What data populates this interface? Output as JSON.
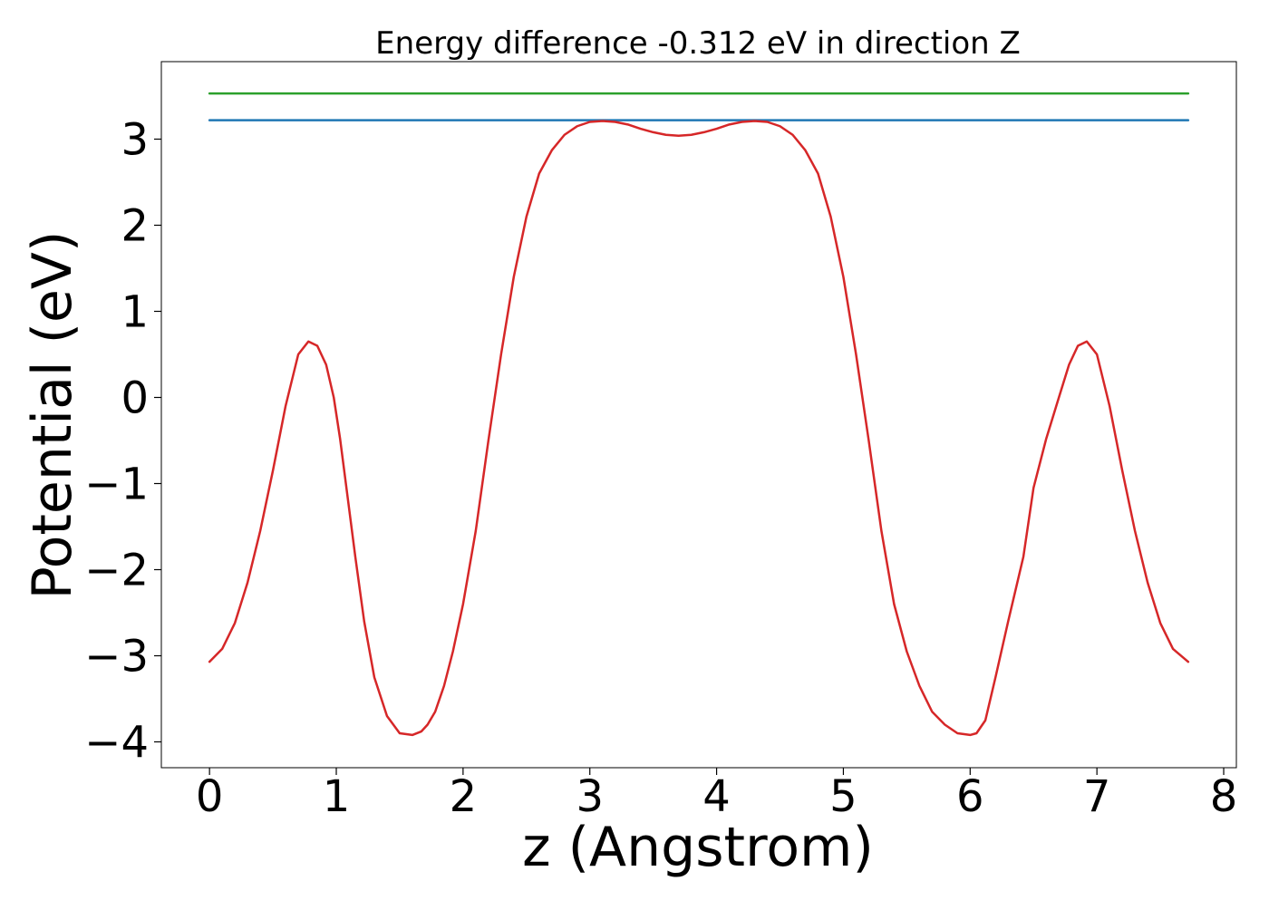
{
  "chart_data": {
    "type": "line",
    "title": "Energy difference -0.312 eV in direction Z",
    "xlabel": "z (Angstrom)",
    "ylabel": "Potential (eV)",
    "xlim": [
      -0.38,
      8.1
    ],
    "ylim": [
      -4.3,
      3.9
    ],
    "x_ticks": [
      0,
      1,
      2,
      3,
      4,
      5,
      6,
      7,
      8
    ],
    "x_tick_labels": [
      "0",
      "1",
      "2",
      "3",
      "4",
      "5",
      "6",
      "7",
      "8"
    ],
    "y_ticks": [
      -4,
      -3,
      -2,
      -1,
      0,
      1,
      2,
      3
    ],
    "y_tick_labels": [
      "−4",
      "−3",
      "−2",
      "−1",
      "0",
      "1",
      "2",
      "3"
    ],
    "grid": false,
    "legend": "none",
    "series": [
      {
        "color": "#2ca02c",
        "x": [
          0.0,
          7.72
        ],
        "y": [
          3.53,
          3.53
        ]
      },
      {
        "color": "#1f77b4",
        "x": [
          0.0,
          7.72
        ],
        "y": [
          3.22,
          3.22
        ]
      },
      {
        "color": "#d62728",
        "x": [
          0.0,
          0.1,
          0.2,
          0.3,
          0.4,
          0.5,
          0.6,
          0.7,
          0.78,
          0.85,
          0.92,
          0.98,
          1.03,
          1.08,
          1.15,
          1.22,
          1.3,
          1.4,
          1.5,
          1.6,
          1.67,
          1.72,
          1.78,
          1.85,
          1.92,
          2.0,
          2.1,
          2.2,
          2.3,
          2.4,
          2.5,
          2.6,
          2.7,
          2.8,
          2.9,
          3.0,
          3.1,
          3.2,
          3.3,
          3.4,
          3.5,
          3.6,
          3.7,
          3.8,
          3.9,
          4.0,
          4.1,
          4.2,
          4.3,
          4.4,
          4.5,
          4.6,
          4.7,
          4.8,
          4.9,
          5.0,
          5.1,
          5.2,
          5.3,
          5.4,
          5.5,
          5.6,
          5.7,
          5.8,
          5.9,
          6.0,
          6.05,
          6.12,
          6.2,
          6.3,
          6.42,
          6.5,
          6.6,
          6.7,
          6.78,
          6.85,
          6.92,
          7.0,
          7.1,
          7.2,
          7.3,
          7.4,
          7.5,
          7.6,
          7.72
        ],
        "y": [
          -3.07,
          -2.92,
          -2.62,
          -2.15,
          -1.55,
          -0.85,
          -0.1,
          0.5,
          0.65,
          0.6,
          0.38,
          0.0,
          -0.48,
          -1.05,
          -1.85,
          -2.6,
          -3.25,
          -3.7,
          -3.9,
          -3.92,
          -3.88,
          -3.8,
          -3.65,
          -3.35,
          -2.95,
          -2.4,
          -1.55,
          -0.5,
          0.5,
          1.4,
          2.1,
          2.6,
          2.87,
          3.05,
          3.15,
          3.2,
          3.21,
          3.2,
          3.17,
          3.12,
          3.08,
          3.05,
          3.04,
          3.05,
          3.08,
          3.12,
          3.17,
          3.2,
          3.21,
          3.2,
          3.15,
          3.05,
          2.87,
          2.6,
          2.1,
          1.4,
          0.5,
          -0.5,
          -1.55,
          -2.4,
          -2.95,
          -3.35,
          -3.65,
          -3.8,
          -3.9,
          -3.92,
          -3.9,
          -3.75,
          -3.25,
          -2.6,
          -1.85,
          -1.05,
          -0.48,
          0.0,
          0.38,
          0.6,
          0.65,
          0.5,
          -0.1,
          -0.85,
          -1.55,
          -2.15,
          -2.62,
          -2.92,
          -3.07
        ]
      }
    ]
  }
}
